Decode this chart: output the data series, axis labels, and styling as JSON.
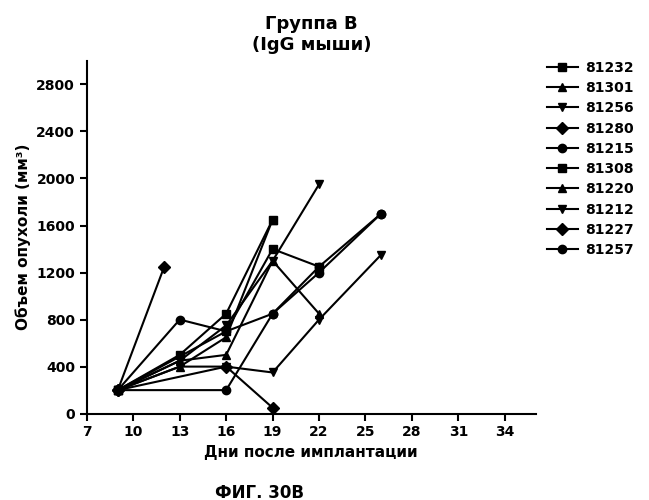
{
  "title_line1": "Группа В",
  "title_line2": "(IgG мыши)",
  "xlabel": "Дни после имплантации",
  "ylabel": "Объем опухоли (мм³)",
  "caption": "ФИГ. 30В",
  "xlim": [
    7,
    36
  ],
  "ylim": [
    0,
    3000
  ],
  "xticks": [
    7,
    10,
    13,
    16,
    19,
    22,
    25,
    28,
    31,
    34
  ],
  "yticks": [
    0,
    400,
    800,
    1200,
    1600,
    2000,
    2400,
    2800
  ],
  "series": [
    {
      "label": "81232",
      "marker": "s",
      "x": [
        9,
        13,
        16,
        19
      ],
      "y": [
        200,
        500,
        850,
        1650
      ]
    },
    {
      "label": "81301",
      "marker": "^",
      "x": [
        9,
        13,
        16,
        19
      ],
      "y": [
        200,
        400,
        650,
        1650
      ]
    },
    {
      "label": "81256",
      "marker": "v",
      "x": [
        9,
        13,
        16,
        19,
        22
      ],
      "y": [
        200,
        450,
        750,
        1300,
        1950
      ]
    },
    {
      "label": "81280",
      "marker": "D",
      "x": [
        9,
        12
      ],
      "y": [
        200,
        1250
      ]
    },
    {
      "label": "81215",
      "marker": "o",
      "x": [
        9,
        13,
        16,
        19,
        22,
        26
      ],
      "y": [
        200,
        800,
        700,
        850,
        1250,
        1700
      ]
    },
    {
      "label": "81308",
      "marker": "s",
      "x": [
        9,
        16,
        19,
        22
      ],
      "y": [
        200,
        700,
        1400,
        1250
      ]
    },
    {
      "label": "81220",
      "marker": "^",
      "x": [
        9,
        13,
        16,
        19,
        22
      ],
      "y": [
        200,
        450,
        500,
        1300,
        850
      ]
    },
    {
      "label": "81212",
      "marker": "v",
      "x": [
        9,
        13,
        16,
        19,
        22,
        26
      ],
      "y": [
        200,
        400,
        400,
        350,
        800,
        1350
      ]
    },
    {
      "label": "81227",
      "marker": "D",
      "x": [
        9,
        16,
        19
      ],
      "y": [
        200,
        400,
        50
      ]
    },
    {
      "label": "81257",
      "marker": "o",
      "x": [
        9,
        16,
        19,
        22,
        26
      ],
      "y": [
        200,
        200,
        850,
        1200,
        1700
      ]
    }
  ],
  "line_color": "#000000",
  "background_color": "#ffffff",
  "title_fontsize": 13,
  "axis_label_fontsize": 11,
  "tick_fontsize": 10,
  "legend_fontsize": 10,
  "caption_fontsize": 12
}
